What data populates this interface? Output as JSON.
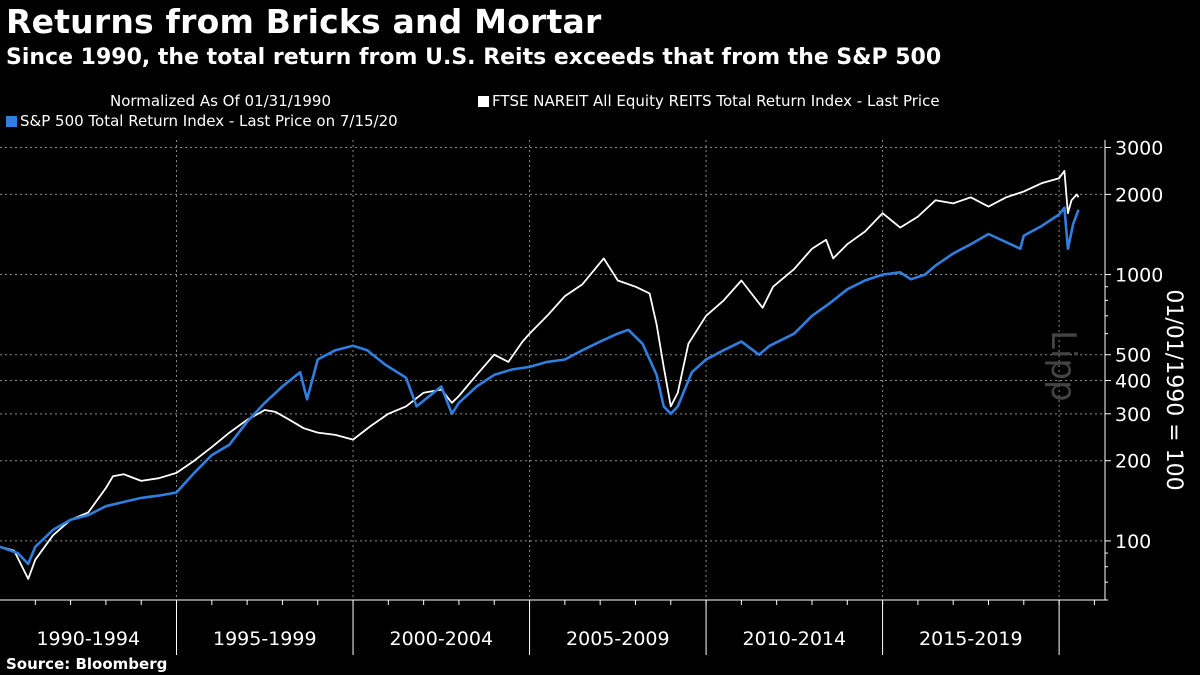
{
  "title": "Returns from Bricks and Mortar",
  "subtitle": "Since 1990, the total return from U.S. Reits exceeds that from the S&P 500",
  "legend": {
    "normalized": "Normalized As Of 01/31/1990",
    "reit": "FTSE NAREIT All Equity REITS Total Return Index - Last Price",
    "spx": "S&P 500 Total Return Index - Last Price on 7/15/20"
  },
  "source": "Source: Bloomberg",
  "watermark": "Lipp",
  "colors": {
    "reit": "#ffffff",
    "spx": "#2e7fe0",
    "grid": "#8a8a8a",
    "axis": "#ffffff"
  },
  "chart_data": {
    "type": "line",
    "scale": "log",
    "ylabel": "01/01/1990 = 100",
    "ylim": [
      60,
      3200
    ],
    "yticks": [
      100,
      200,
      300,
      400,
      500,
      1000,
      2000,
      3000
    ],
    "xlim": [
      1990.0,
      2021.3
    ],
    "xgroups": [
      "1990-1994",
      "1995-1999",
      "2000-2004",
      "2005-2009",
      "2010-2014",
      "2015-2019"
    ],
    "series": [
      {
        "name": "FTSE NAREIT All Equity REITS Total Return Index - Last Price",
        "color": "#ffffff",
        "x": [
          1990.0,
          1990.4,
          1990.8,
          1991.0,
          1991.5,
          1992.0,
          1992.5,
          1993.0,
          1993.2,
          1993.5,
          1994.0,
          1994.5,
          1995.0,
          1995.5,
          1996.0,
          1996.5,
          1997.0,
          1997.5,
          1997.8,
          1998.2,
          1998.6,
          1999.0,
          1999.5,
          2000.0,
          2000.5,
          2001.0,
          2001.5,
          2002.0,
          2002.5,
          2002.8,
          2003.0,
          2003.5,
          2004.0,
          2004.4,
          2004.8,
          2005.0,
          2005.5,
          2006.0,
          2006.5,
          2007.1,
          2007.5,
          2008.0,
          2008.4,
          2008.6,
          2008.8,
          2009.0,
          2009.2,
          2009.5,
          2010.0,
          2010.5,
          2011.0,
          2011.6,
          2011.9,
          2012.5,
          2013.0,
          2013.4,
          2013.6,
          2014.0,
          2014.5,
          2015.0,
          2015.5,
          2016.0,
          2016.5,
          2017.0,
          2017.5,
          2018.0,
          2018.5,
          2019.0,
          2019.5,
          2020.0,
          2020.15,
          2020.25,
          2020.35,
          2020.5,
          2020.55
        ],
        "values": [
          95,
          92,
          72,
          85,
          105,
          120,
          128,
          158,
          175,
          178,
          168,
          172,
          180,
          200,
          225,
          255,
          285,
          310,
          305,
          285,
          265,
          255,
          250,
          240,
          270,
          300,
          320,
          360,
          370,
          330,
          350,
          420,
          500,
          470,
          560,
          600,
          700,
          830,
          920,
          1150,
          950,
          900,
          850,
          650,
          450,
          320,
          360,
          550,
          700,
          800,
          950,
          750,
          900,
          1050,
          1250,
          1350,
          1150,
          1300,
          1450,
          1700,
          1500,
          1650,
          1900,
          1850,
          1950,
          1800,
          1950,
          2050,
          2200,
          2300,
          2450,
          1700,
          1900,
          2000,
          1950
        ]
      },
      {
        "name": "S&P 500 Total Return Index - Last Price on 7/15/20",
        "color": "#2e7fe0",
        "x": [
          1990.0,
          1990.5,
          1990.8,
          1991.0,
          1991.5,
          1992.0,
          1992.5,
          1993.0,
          1993.5,
          1994.0,
          1994.5,
          1995.0,
          1995.5,
          1996.0,
          1996.5,
          1997.0,
          1997.5,
          1998.0,
          1998.5,
          1998.7,
          1999.0,
          1999.5,
          2000.0,
          2000.4,
          2000.9,
          2001.5,
          2001.8,
          2002.5,
          2002.8,
          2003.0,
          2003.5,
          2004.0,
          2004.5,
          2005.0,
          2005.5,
          2006.0,
          2006.5,
          2007.0,
          2007.5,
          2007.8,
          2008.2,
          2008.6,
          2008.8,
          2009.0,
          2009.2,
          2009.6,
          2010.0,
          2010.5,
          2011.0,
          2011.5,
          2011.8,
          2012.5,
          2013.0,
          2013.5,
          2014.0,
          2014.5,
          2015.0,
          2015.5,
          2015.8,
          2016.2,
          2016.5,
          2017.0,
          2017.5,
          2018.0,
          2018.9,
          2019.0,
          2019.5,
          2020.0,
          2020.15,
          2020.25,
          2020.4,
          2020.55
        ],
        "values": [
          95,
          90,
          82,
          95,
          110,
          120,
          125,
          135,
          140,
          145,
          148,
          152,
          180,
          210,
          230,
          280,
          330,
          380,
          430,
          340,
          480,
          520,
          540,
          520,
          460,
          410,
          320,
          380,
          300,
          330,
          380,
          420,
          440,
          450,
          470,
          480,
          520,
          560,
          600,
          620,
          550,
          420,
          320,
          300,
          320,
          430,
          480,
          520,
          560,
          500,
          540,
          600,
          700,
          780,
          880,
          950,
          1000,
          1020,
          960,
          1000,
          1080,
          1200,
          1300,
          1420,
          1250,
          1400,
          1520,
          1680,
          1780,
          1250,
          1550,
          1750
        ]
      }
    ]
  }
}
